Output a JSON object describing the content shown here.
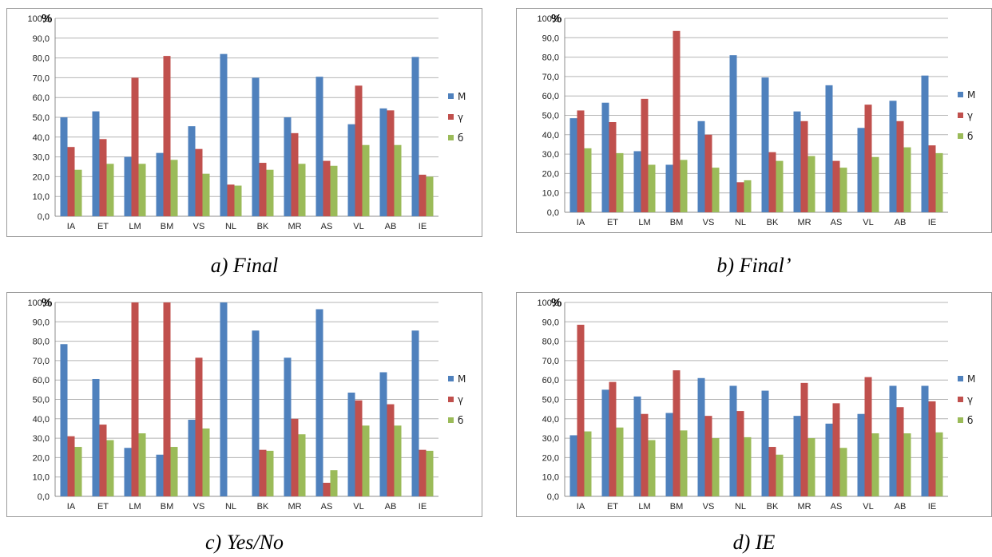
{
  "chart_data": [
    {
      "type": "bar",
      "caption": "a) Final",
      "unit_label": "%",
      "categories": [
        "IA",
        "ET",
        "LM",
        "BM",
        "VS",
        "NL",
        "BK",
        "MR",
        "AS",
        "VL",
        "AB",
        "IE"
      ],
      "ylim": [
        0,
        100
      ],
      "yticks": [
        "0,0",
        "10,0",
        "20,0",
        "30,0",
        "40,0",
        "50,0",
        "60,0",
        "70,0",
        "80,0",
        "90,0",
        "100,0"
      ],
      "grid": true,
      "legend": "right",
      "series": [
        {
          "name": "М",
          "color": "#4f81bd",
          "values": [
            50.0,
            53.0,
            30.0,
            32.0,
            45.5,
            82.0,
            70.0,
            50.0,
            70.5,
            46.5,
            54.5,
            80.5
          ]
        },
        {
          "name": "γ",
          "color": "#c0504d",
          "values": [
            35.0,
            39.0,
            70.0,
            81.0,
            34.0,
            16.0,
            27.0,
            42.0,
            28.0,
            66.0,
            53.5,
            21.0
          ]
        },
        {
          "name": "б",
          "color": "#9bbb59",
          "values": [
            23.5,
            26.5,
            26.5,
            28.5,
            21.5,
            15.5,
            23.5,
            26.5,
            25.5,
            36.0,
            36.0,
            20.0
          ]
        }
      ]
    },
    {
      "type": "bar",
      "caption": "b) Final’",
      "unit_label": "%",
      "categories": [
        "IA",
        "ET",
        "LM",
        "BM",
        "VS",
        "NL",
        "BK",
        "MR",
        "AS",
        "VL",
        "AB",
        "IE"
      ],
      "ylim": [
        0,
        100
      ],
      "yticks": [
        "0,0",
        "10,0",
        "20,0",
        "30,0",
        "40,0",
        "50,0",
        "60,0",
        "70,0",
        "80,0",
        "90,0",
        "100,0"
      ],
      "grid": true,
      "legend": "right",
      "series": [
        {
          "name": "М",
          "color": "#4f81bd",
          "values": [
            48.5,
            56.5,
            31.5,
            24.5,
            47.0,
            81.0,
            69.5,
            52.0,
            65.5,
            43.5,
            57.5,
            70.5
          ]
        },
        {
          "name": "γ",
          "color": "#c0504d",
          "values": [
            52.5,
            46.5,
            58.5,
            93.5,
            40.0,
            15.5,
            31.0,
            47.0,
            26.5,
            55.5,
            47.0,
            34.5
          ]
        },
        {
          "name": "б",
          "color": "#9bbb59",
          "values": [
            33.0,
            30.5,
            24.5,
            27.0,
            23.0,
            16.5,
            26.5,
            29.0,
            23.0,
            28.5,
            33.5,
            30.5
          ]
        }
      ]
    },
    {
      "type": "bar",
      "caption": "c) Yes/No",
      "unit_label": "%",
      "categories": [
        "IA",
        "ET",
        "LM",
        "BM",
        "VS",
        "NL",
        "BK",
        "MR",
        "AS",
        "VL",
        "AB",
        "IE"
      ],
      "ylim": [
        0,
        100
      ],
      "yticks": [
        "0,0",
        "10,0",
        "20,0",
        "30,0",
        "40,0",
        "50,0",
        "60,0",
        "70,0",
        "80,0",
        "90,0",
        "100,0"
      ],
      "grid": true,
      "legend": "right",
      "series": [
        {
          "name": "М",
          "color": "#4f81bd",
          "values": [
            78.5,
            60.5,
            25.0,
            21.5,
            39.5,
            100.0,
            85.5,
            71.5,
            96.5,
            53.5,
            64.0,
            85.5
          ]
        },
        {
          "name": "γ",
          "color": "#c0504d",
          "values": [
            31.0,
            37.0,
            100.0,
            100.0,
            71.5,
            0.0,
            24.0,
            40.0,
            7.0,
            49.5,
            47.5,
            24.0
          ]
        },
        {
          "name": "б",
          "color": "#9bbb59",
          "values": [
            25.5,
            29.0,
            32.5,
            25.5,
            35.0,
            0.0,
            23.5,
            32.0,
            13.5,
            36.5,
            36.5,
            23.5
          ]
        }
      ]
    },
    {
      "type": "bar",
      "caption": "d) IE",
      "unit_label": "%",
      "categories": [
        "IA",
        "ET",
        "LM",
        "BM",
        "VS",
        "NL",
        "BK",
        "MR",
        "AS",
        "VL",
        "AB",
        "IE"
      ],
      "ylim": [
        0,
        100
      ],
      "yticks": [
        "0,0",
        "10,0",
        "20,0",
        "30,0",
        "40,0",
        "50,0",
        "60,0",
        "70,0",
        "80,0",
        "90,0",
        "100,0"
      ],
      "grid": true,
      "legend": "right",
      "series": [
        {
          "name": "М",
          "color": "#4f81bd",
          "values": [
            31.5,
            55.0,
            51.5,
            43.0,
            61.0,
            57.0,
            54.5,
            41.5,
            37.5,
            42.5,
            57.0,
            57.0
          ]
        },
        {
          "name": "γ",
          "color": "#c0504d",
          "values": [
            88.5,
            59.0,
            42.5,
            65.0,
            41.5,
            44.0,
            25.5,
            58.5,
            48.0,
            61.5,
            46.0,
            49.0
          ]
        },
        {
          "name": "б",
          "color": "#9bbb59",
          "values": [
            33.5,
            35.5,
            29.0,
            34.0,
            30.0,
            30.5,
            21.5,
            30.0,
            25.0,
            32.5,
            32.5,
            33.0
          ]
        }
      ]
    }
  ]
}
